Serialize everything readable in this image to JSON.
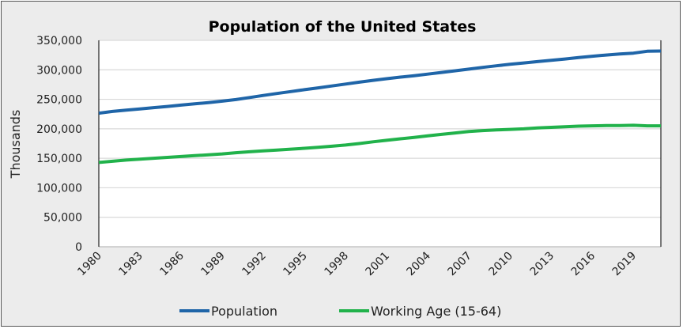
{
  "chart_data": {
    "type": "line",
    "title": "Population of the United States",
    "ylabel": "Thousands",
    "xlabel": "",
    "ylim": [
      0,
      350000
    ],
    "yticks": [
      "0",
      "50,000",
      "100,000",
      "150,000",
      "200,000",
      "250,000",
      "300,000",
      "350,000"
    ],
    "grid": true,
    "legend": "bottom",
    "x": [
      1980,
      1981,
      1982,
      1983,
      1984,
      1985,
      1986,
      1987,
      1988,
      1989,
      1990,
      1991,
      1992,
      1993,
      1994,
      1995,
      1996,
      1997,
      1998,
      1999,
      2000,
      2001,
      2002,
      2003,
      2004,
      2005,
      2006,
      2007,
      2008,
      2009,
      2010,
      2011,
      2012,
      2013,
      2014,
      2015,
      2016,
      2017,
      2018,
      2019,
      2020,
      2021
    ],
    "xtick_labels": [
      "1980",
      "1983",
      "1986",
      "1989",
      "1992",
      "1995",
      "1998",
      "2001",
      "2004",
      "2007",
      "2010",
      "2013",
      "2016",
      "2019"
    ],
    "series": [
      {
        "name": "Population",
        "color": "#1f65a8",
        "values": [
          226546,
          229466,
          231664,
          233792,
          235825,
          237924,
          240133,
          242289,
          244499,
          246819,
          249623,
          252981,
          256514,
          259919,
          263126,
          266278,
          269394,
          272657,
          275854,
          279040,
          282162,
          284969,
          287625,
          290108,
          292805,
          295517,
          298380,
          301231,
          304094,
          306772,
          309327,
          311583,
          313878,
          316060,
          318386,
          320739,
          323072,
          325122,
          326838,
          328330,
          331501,
          331894
        ]
      },
      {
        "name": "Working Age (15-64)",
        "color": "#21b24b",
        "values": [
          143000,
          145000,
          147000,
          148500,
          150000,
          151500,
          153000,
          154500,
          156000,
          157500,
          159500,
          161000,
          162500,
          164000,
          165500,
          167000,
          168500,
          170500,
          172500,
          175000,
          178000,
          180500,
          183000,
          185500,
          188000,
          190500,
          193000,
          195500,
          197000,
          198000,
          199000,
          200000,
          201500,
          202500,
          203500,
          204500,
          205000,
          205500,
          205500,
          206000,
          205000,
          205000
        ]
      }
    ]
  }
}
